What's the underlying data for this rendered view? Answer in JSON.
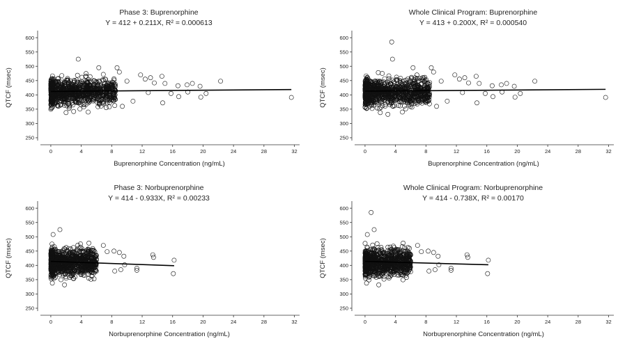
{
  "chart_data": [
    {
      "type": "scatter",
      "title": "Phase 3: Buprenorphine",
      "subtitle": "Y = 412 + 0.211X, R² = 0.000613",
      "xlabel": "Buprenorphine Concentration (ng/mL)",
      "ylabel": "QTCF (msec)",
      "xlim": [
        -1,
        32.5
      ],
      "ylim": [
        245,
        615
      ],
      "xticks": [
        "0",
        "4",
        "8",
        "12",
        "16",
        "20",
        "24",
        "28",
        "32"
      ],
      "yticks": [
        "250",
        "300",
        "350",
        "400",
        "450",
        "500",
        "550",
        "600"
      ],
      "regression": {
        "intercept": 412,
        "slope": 0.211,
        "x": [
          0,
          31.6
        ]
      },
      "cloud": {
        "max_conc": 8.5,
        "n": 1100,
        "max_qtcf": 505
      },
      "notable_points": [
        {
          "x": 3.6,
          "y": 525
        },
        {
          "x": 9.0,
          "y": 480
        },
        {
          "x": 11.8,
          "y": 470
        },
        {
          "x": 13.1,
          "y": 460
        },
        {
          "x": 14.6,
          "y": 465
        },
        {
          "x": 12.4,
          "y": 455
        },
        {
          "x": 10.0,
          "y": 448
        },
        {
          "x": 13.6,
          "y": 442
        },
        {
          "x": 15.0,
          "y": 440
        },
        {
          "x": 16.7,
          "y": 432
        },
        {
          "x": 17.9,
          "y": 435
        },
        {
          "x": 18.6,
          "y": 440
        },
        {
          "x": 19.6,
          "y": 430
        },
        {
          "x": 20.4,
          "y": 405
        },
        {
          "x": 19.7,
          "y": 392
        },
        {
          "x": 22.3,
          "y": 448
        },
        {
          "x": 10.8,
          "y": 378
        },
        {
          "x": 14.7,
          "y": 372
        },
        {
          "x": 16.8,
          "y": 394
        },
        {
          "x": 15.8,
          "y": 405
        },
        {
          "x": 12.8,
          "y": 408
        },
        {
          "x": 18.0,
          "y": 410
        },
        {
          "x": 31.6,
          "y": 391
        },
        {
          "x": 2.0,
          "y": 338
        },
        {
          "x": 3.0,
          "y": 342
        },
        {
          "x": 4.9,
          "y": 340
        },
        {
          "x": 9.4,
          "y": 360
        },
        {
          "x": 8.7,
          "y": 495
        },
        {
          "x": 6.3,
          "y": 495
        }
      ]
    },
    {
      "type": "scatter",
      "title": "Whole Clinical Program: Buprenorphine",
      "subtitle": "Y = 413 + 0.200X, R² = 0.000540",
      "xlabel": "Buprenorphine Concentration (ng/mL)",
      "ylabel": "QTCF (msec)",
      "xlim": [
        -1,
        32.5
      ],
      "ylim": [
        245,
        615
      ],
      "xticks": [
        "0",
        "4",
        "8",
        "12",
        "16",
        "20",
        "24",
        "28",
        "32"
      ],
      "yticks": [
        "250",
        "300",
        "350",
        "400",
        "450",
        "500",
        "550",
        "600"
      ],
      "regression": {
        "intercept": 413,
        "slope": 0.2,
        "x": [
          0,
          31.6
        ]
      },
      "cloud": {
        "max_conc": 8.5,
        "n": 1100,
        "max_qtcf": 505
      },
      "notable_points": [
        {
          "x": 3.5,
          "y": 585
        },
        {
          "x": 3.6,
          "y": 525
        },
        {
          "x": 9.0,
          "y": 480
        },
        {
          "x": 11.8,
          "y": 470
        },
        {
          "x": 13.1,
          "y": 460
        },
        {
          "x": 14.6,
          "y": 465
        },
        {
          "x": 12.4,
          "y": 455
        },
        {
          "x": 10.0,
          "y": 448
        },
        {
          "x": 13.6,
          "y": 442
        },
        {
          "x": 15.0,
          "y": 440
        },
        {
          "x": 16.7,
          "y": 432
        },
        {
          "x": 17.9,
          "y": 435
        },
        {
          "x": 18.6,
          "y": 440
        },
        {
          "x": 19.6,
          "y": 430
        },
        {
          "x": 20.4,
          "y": 405
        },
        {
          "x": 19.7,
          "y": 392
        },
        {
          "x": 22.3,
          "y": 448
        },
        {
          "x": 10.8,
          "y": 378
        },
        {
          "x": 14.7,
          "y": 372
        },
        {
          "x": 16.8,
          "y": 394
        },
        {
          "x": 15.8,
          "y": 405
        },
        {
          "x": 12.8,
          "y": 408
        },
        {
          "x": 18.0,
          "y": 410
        },
        {
          "x": 31.6,
          "y": 391
        },
        {
          "x": 2.0,
          "y": 338
        },
        {
          "x": 3.0,
          "y": 332
        },
        {
          "x": 4.9,
          "y": 340
        },
        {
          "x": 9.4,
          "y": 360
        },
        {
          "x": 8.7,
          "y": 495
        },
        {
          "x": 6.3,
          "y": 495
        }
      ]
    },
    {
      "type": "scatter",
      "title": "Phase 3: Norbuprenorphine",
      "subtitle": "Y = 414 - 0.933X, R² = 0.00233",
      "xlabel": "Norbuprenorphine Concentration (ng/mL)",
      "ylabel": "QTCF (msec)",
      "xlim": [
        -1,
        32.5
      ],
      "ylim": [
        245,
        615
      ],
      "xticks": [
        "0",
        "4",
        "8",
        "12",
        "16",
        "20",
        "24",
        "28",
        "32"
      ],
      "yticks": [
        "250",
        "300",
        "350",
        "400",
        "450",
        "500",
        "550",
        "600"
      ],
      "regression": {
        "intercept": 414,
        "slope": -0.933,
        "x": [
          0,
          16.2
        ]
      },
      "cloud": {
        "max_conc": 6.0,
        "n": 1100,
        "max_qtcf": 505
      },
      "notable_points": [
        {
          "x": 1.2,
          "y": 525
        },
        {
          "x": 0.3,
          "y": 508
        },
        {
          "x": 5.0,
          "y": 478
        },
        {
          "x": 7.4,
          "y": 448
        },
        {
          "x": 8.3,
          "y": 450
        },
        {
          "x": 9.0,
          "y": 445
        },
        {
          "x": 9.6,
          "y": 432
        },
        {
          "x": 6.9,
          "y": 470
        },
        {
          "x": 13.4,
          "y": 437
        },
        {
          "x": 13.5,
          "y": 428
        },
        {
          "x": 16.2,
          "y": 418
        },
        {
          "x": 16.1,
          "y": 371
        },
        {
          "x": 11.3,
          "y": 390
        },
        {
          "x": 11.3,
          "y": 383
        },
        {
          "x": 9.2,
          "y": 385
        },
        {
          "x": 9.7,
          "y": 402
        },
        {
          "x": 8.4,
          "y": 380
        },
        {
          "x": 1.8,
          "y": 332
        },
        {
          "x": 0.2,
          "y": 338
        }
      ]
    },
    {
      "type": "scatter",
      "title": "Whole Clinical Program: Norbuprenorphine",
      "subtitle": "Y = 414 - 0.738X, R² = 0.00170",
      "xlabel": "Norbuprenorphine Concentration (ng/mL)",
      "ylabel": "QTCF (msec)",
      "xlim": [
        -1,
        32.5
      ],
      "ylim": [
        245,
        615
      ],
      "xticks": [
        "0",
        "4",
        "8",
        "12",
        "16",
        "20",
        "24",
        "28",
        "32"
      ],
      "yticks": [
        "250",
        "300",
        "350",
        "400",
        "450",
        "500",
        "550",
        "600"
      ],
      "regression": {
        "intercept": 414,
        "slope": -0.738,
        "x": [
          0,
          16.2
        ]
      },
      "cloud": {
        "max_conc": 6.0,
        "n": 1100,
        "max_qtcf": 505
      },
      "notable_points": [
        {
          "x": 0.8,
          "y": 585
        },
        {
          "x": 1.2,
          "y": 525
        },
        {
          "x": 0.3,
          "y": 508
        },
        {
          "x": 5.0,
          "y": 478
        },
        {
          "x": 7.4,
          "y": 448
        },
        {
          "x": 8.3,
          "y": 450
        },
        {
          "x": 9.0,
          "y": 445
        },
        {
          "x": 9.6,
          "y": 432
        },
        {
          "x": 6.9,
          "y": 470
        },
        {
          "x": 13.4,
          "y": 437
        },
        {
          "x": 13.5,
          "y": 428
        },
        {
          "x": 16.2,
          "y": 418
        },
        {
          "x": 16.1,
          "y": 371
        },
        {
          "x": 11.3,
          "y": 390
        },
        {
          "x": 11.3,
          "y": 383
        },
        {
          "x": 9.2,
          "y": 385
        },
        {
          "x": 9.7,
          "y": 402
        },
        {
          "x": 8.4,
          "y": 380
        },
        {
          "x": 1.8,
          "y": 332
        },
        {
          "x": 0.2,
          "y": 338
        }
      ]
    }
  ]
}
